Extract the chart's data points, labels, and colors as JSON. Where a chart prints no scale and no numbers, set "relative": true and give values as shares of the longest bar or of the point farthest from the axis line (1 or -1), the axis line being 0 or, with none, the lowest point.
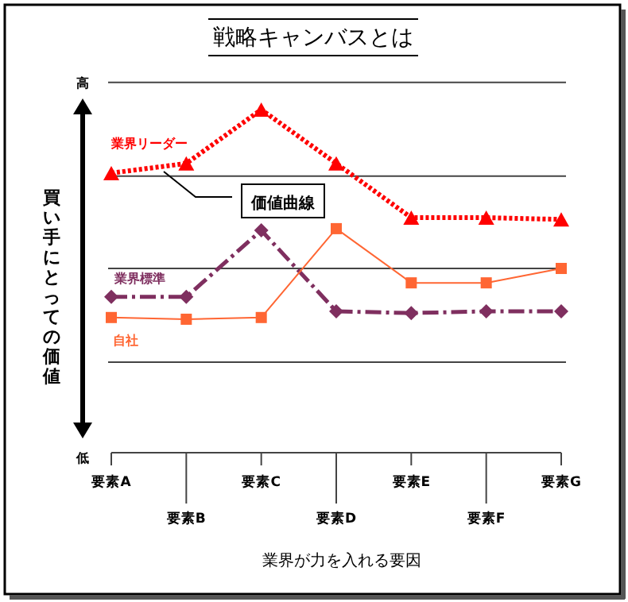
{
  "chart_data": {
    "type": "line",
    "title": "戦略キャンバスとは",
    "xlabel": "業界が力を入れる要因",
    "ylabel": "買い手にとっての価値",
    "relative": true,
    "grid": true,
    "legend": false,
    "categories": [
      "要素A",
      "要素B",
      "要素C",
      "要素D",
      "要素E",
      "要素F",
      "要素G"
    ],
    "series": [
      {
        "name": "業界リーダー",
        "color": "#ff0000",
        "marker": "triangle",
        "line_style": "dotted",
        "values": [
          0.815,
          0.843,
          1,
          0.843,
          0.685,
          0.685,
          0.68
        ]
      },
      {
        "name": "業界標準",
        "color": "#7f2f5f",
        "marker": "diamond",
        "line_style": "dashdot",
        "values": [
          0.454,
          0.454,
          0.648,
          0.412,
          0.407,
          0.412,
          0.412
        ]
      },
      {
        "name": "自社",
        "color": "#ff6633",
        "marker": "square",
        "line_style": "solid",
        "values": [
          0.394,
          0.389,
          0.394,
          0.653,
          0.495,
          0.495,
          0.537
        ]
      }
    ],
    "annotations": [
      "価値曲線",
      "高",
      "低"
    ]
  }
}
